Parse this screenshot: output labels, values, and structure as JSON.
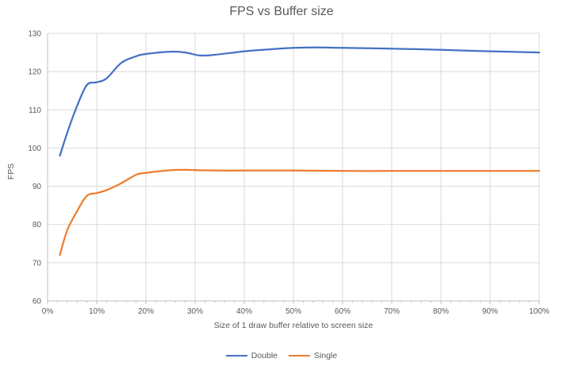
{
  "chart_data": {
    "type": "line",
    "title": "FPS vs Buffer size",
    "xlabel": "Size of 1 draw buffer relative to screen size",
    "ylabel": "FPS",
    "xlim": [
      0,
      100
    ],
    "ylim": [
      60,
      130
    ],
    "x_tick_step": 10,
    "x_minor_tick_step": 2,
    "y_tick_step": 10,
    "x_tick_suffix": "%",
    "grid": true,
    "legend_position": "bottom",
    "colors": {
      "background": "#ffffff",
      "gridline": "#d9d9d9",
      "axis_line": "#bfbfbf",
      "text": "#595959"
    },
    "x_tick_labels": [
      "0%",
      "10%",
      "20%",
      "30%",
      "40%",
      "50%",
      "60%",
      "70%",
      "80%",
      "90%",
      "100%"
    ],
    "y_tick_labels": [
      "60",
      "70",
      "80",
      "90",
      "100",
      "110",
      "120",
      "130"
    ],
    "series": [
      {
        "name": "Double",
        "color": "#4472C4",
        "points": [
          [
            2.5,
            98
          ],
          [
            4,
            104
          ],
          [
            6,
            111
          ],
          [
            8,
            116.5
          ],
          [
            10,
            117.2
          ],
          [
            12,
            118.2
          ],
          [
            15,
            122.3
          ],
          [
            18,
            124
          ],
          [
            20,
            124.6
          ],
          [
            25,
            125.2
          ],
          [
            28,
            125
          ],
          [
            31,
            124.2
          ],
          [
            34,
            124.4
          ],
          [
            40,
            125.3
          ],
          [
            45,
            125.8
          ],
          [
            50,
            126.2
          ],
          [
            55,
            126.3
          ],
          [
            60,
            126.2
          ],
          [
            70,
            126
          ],
          [
            80,
            125.7
          ],
          [
            90,
            125.3
          ],
          [
            100,
            125
          ]
        ]
      },
      {
        "name": "Single",
        "color": "#ED7D31",
        "points": [
          [
            2.5,
            72
          ],
          [
            4,
            78.5
          ],
          [
            6,
            83.5
          ],
          [
            8,
            87.5
          ],
          [
            10,
            88.2
          ],
          [
            12,
            89
          ],
          [
            15,
            90.8
          ],
          [
            18,
            93
          ],
          [
            20,
            93.5
          ],
          [
            25,
            94.2
          ],
          [
            28,
            94.3
          ],
          [
            31,
            94.2
          ],
          [
            35,
            94.1
          ],
          [
            40,
            94.1
          ],
          [
            50,
            94.1
          ],
          [
            60,
            94
          ],
          [
            70,
            94
          ],
          [
            80,
            94
          ],
          [
            90,
            94
          ],
          [
            100,
            94
          ]
        ]
      }
    ]
  }
}
